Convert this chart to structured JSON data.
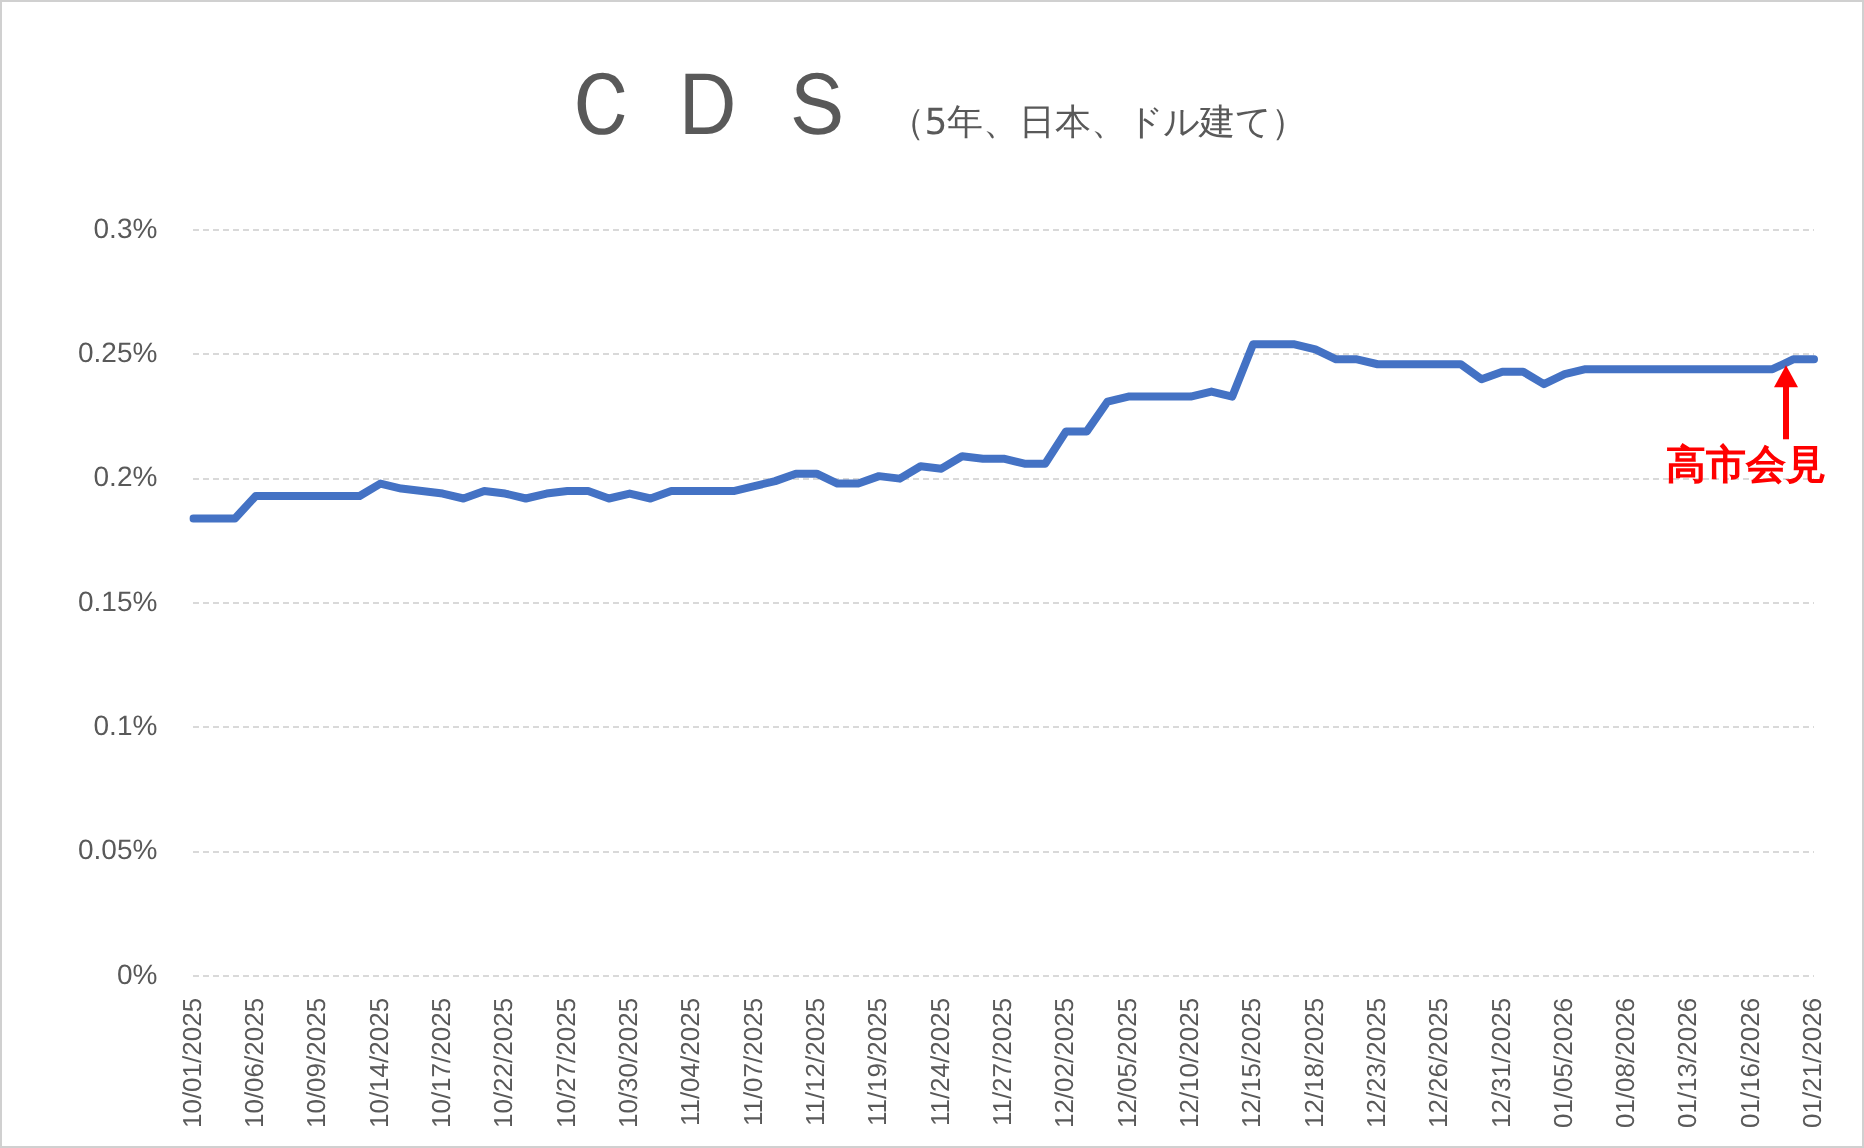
{
  "chart_data": {
    "type": "line",
    "title": "ＣＤＳ",
    "subtitle": "（5年、日本、ドル建て）",
    "categories": [
      "10/01/2025",
      null,
      null,
      "10/06/2025",
      null,
      null,
      "10/09/2025",
      null,
      null,
      "10/14/2025",
      null,
      null,
      "10/17/2025",
      null,
      null,
      "10/22/2025",
      null,
      null,
      "10/27/2025",
      null,
      null,
      "10/30/2025",
      null,
      null,
      "11/04/2025",
      null,
      null,
      "11/07/2025",
      null,
      null,
      "11/12/2025",
      null,
      null,
      "11/19/2025",
      null,
      null,
      "11/24/2025",
      null,
      null,
      "11/27/2025",
      null,
      null,
      "12/02/2025",
      null,
      null,
      "12/05/2025",
      null,
      null,
      "12/10/2025",
      null,
      null,
      "12/15/2025",
      null,
      null,
      "12/18/2025",
      null,
      null,
      "12/23/2025",
      null,
      null,
      "12/26/2025",
      null,
      null,
      "12/31/2025",
      null,
      null,
      "01/05/2026",
      null,
      null,
      "01/08/2026",
      null,
      null,
      "01/13/2026",
      null,
      null,
      "01/16/2026",
      null,
      null,
      "01/21/2026"
    ],
    "series": [
      {
        "color": "#4472c4",
        "values": [
          0.184,
          0.184,
          0.184,
          0.193,
          0.193,
          0.193,
          0.193,
          0.193,
          0.193,
          0.198,
          0.196,
          0.195,
          0.194,
          0.192,
          0.195,
          0.194,
          0.192,
          0.194,
          0.195,
          0.195,
          0.192,
          0.194,
          0.192,
          0.195,
          0.195,
          0.195,
          0.195,
          0.197,
          0.199,
          0.202,
          0.202,
          0.198,
          0.198,
          0.201,
          0.2,
          0.205,
          0.204,
          0.209,
          0.208,
          0.208,
          0.206,
          0.206,
          0.219,
          0.219,
          0.231,
          0.233,
          0.233,
          0.233,
          0.233,
          0.235,
          0.233,
          0.254,
          0.254,
          0.254,
          0.252,
          0.248,
          0.248,
          0.246,
          0.246,
          0.246,
          0.246,
          0.246,
          0.24,
          0.243,
          0.243,
          0.238,
          0.242,
          0.244,
          0.244,
          0.244,
          0.244,
          0.244,
          0.244,
          0.244,
          0.244,
          0.244,
          0.244,
          0.248,
          0.248
        ]
      }
    ],
    "ylim": [
      0,
      0.3
    ],
    "yticks": [
      {
        "value": 0,
        "label": "0%"
      },
      {
        "value": 0.05,
        "label": "0.05%"
      },
      {
        "value": 0.1,
        "label": "0.1%"
      },
      {
        "value": 0.15,
        "label": "0.15%"
      },
      {
        "value": 0.2,
        "label": "0.2%"
      },
      {
        "value": 0.25,
        "label": "0.25%"
      },
      {
        "value": 0.3,
        "label": "0.3%"
      }
    ],
    "grid": "y",
    "legend": false,
    "marker": "none",
    "line_style": "solid",
    "annotations": [
      {
        "text": "高市会見",
        "y": 0.248
      }
    ]
  }
}
